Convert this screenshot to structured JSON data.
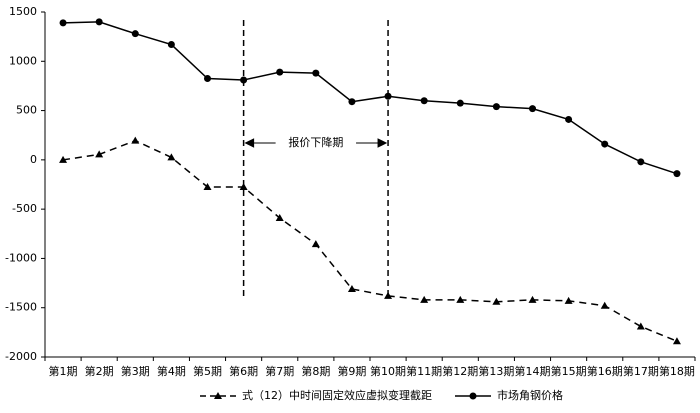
{
  "chart_data": {
    "type": "line",
    "categories": [
      "第1期",
      "第2期",
      "第3期",
      "第4期",
      "第5期",
      "第6期",
      "第7期",
      "第8期",
      "第9期",
      "第10期",
      "第11期",
      "第12期",
      "第13期",
      "第14期",
      "第15期",
      "第16期",
      "第17期",
      "第18期"
    ],
    "series": [
      {
        "name": "式（12）中时间固定效应虚拟变理截距",
        "color": "#000000",
        "dash": true,
        "marker": "triangle",
        "values": [
          0,
          55,
          195,
          25,
          -275,
          -275,
          -590,
          -855,
          -1310,
          -1380,
          -1420,
          -1420,
          -1440,
          -1420,
          -1430,
          -1480,
          -1690,
          -1840
        ]
      },
      {
        "name": "市场角钢价格",
        "color": "#000000",
        "dash": false,
        "marker": "circle",
        "values": [
          1390,
          1400,
          1280,
          1170,
          825,
          810,
          890,
          880,
          590,
          645,
          600,
          575,
          540,
          520,
          410,
          160,
          -20,
          -140
        ]
      }
    ],
    "ylim": [
      -2000,
      1500
    ],
    "yticks": [
      -2000,
      -1500,
      -1000,
      -500,
      0,
      500,
      1000,
      1500
    ],
    "annotation": "报价下降期",
    "legend": "bottom"
  }
}
